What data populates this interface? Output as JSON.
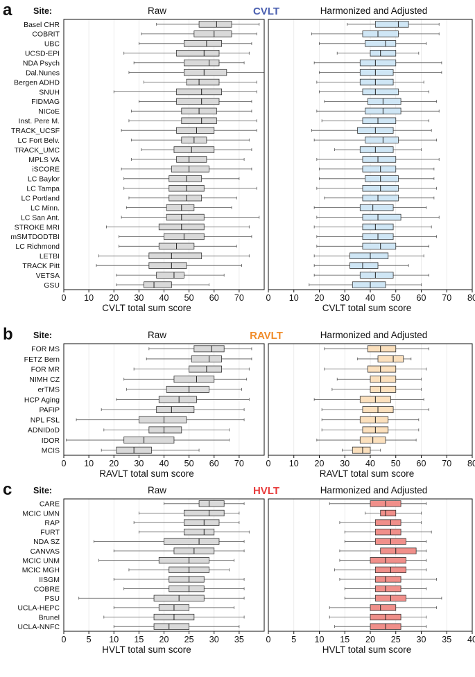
{
  "colors": {
    "cvlt": "#4a5fb0",
    "ravlt": "#f08c2a",
    "hvlt": "#e83c3c"
  },
  "chart_data": [
    {
      "panel": "a",
      "type": "boxplot",
      "test_name": "CVLT",
      "site_header": "Site:",
      "left_title": "Raw",
      "right_title": "Harmonized and Adjusted",
      "xlabel": "CVLT total sum score",
      "xlim": [
        0,
        80
      ],
      "xticks": [
        0,
        10,
        20,
        30,
        40,
        50,
        60,
        70,
        80
      ],
      "left_xticks": [
        0,
        10,
        20,
        30,
        40,
        50,
        60,
        70
      ],
      "raw_fill": "#d9d9d9",
      "adj_fill": "#cfe6f5",
      "sites": [
        "Basel CHR",
        "COBRIT",
        "UBC",
        "UCSD-EPI",
        "NDA Psych",
        "Dal.Nunes",
        "Bergen ADHD",
        "SNUH",
        "FIDMAG",
        "NICoE",
        "Inst. Pere M.",
        "TRACK_UCSF",
        "LC Fort Belv.",
        "TRACK_UMC",
        "MPLS VA",
        "iSCORE",
        "LC Baylor",
        "LC Tampa",
        "LC Portland",
        "LC Minn.",
        "LC San Ant.",
        "STROKE MRI",
        "mSMTDODTBI",
        "LC Richmond",
        "LETBI",
        "TRACK Pitt",
        "VETSA",
        "GSU"
      ],
      "raw": [
        [
          37,
          54,
          61,
          67,
          78
        ],
        [
          31,
          52,
          60,
          67,
          77
        ],
        [
          30,
          48,
          57,
          63,
          75
        ],
        [
          24,
          45,
          56,
          62,
          74
        ],
        [
          28,
          48,
          58,
          62,
          72
        ],
        [
          26,
          48,
          56,
          65,
          80
        ],
        [
          32,
          49,
          54,
          62,
          77
        ],
        [
          20,
          45,
          55,
          63,
          77
        ],
        [
          30,
          45,
          55,
          62,
          75
        ],
        [
          27,
          47,
          54,
          61,
          75
        ],
        [
          26,
          47,
          55,
          61,
          77
        ],
        [
          23,
          45,
          53,
          60,
          77
        ],
        [
          27,
          47,
          52,
          57,
          74
        ],
        [
          31,
          44,
          51,
          60,
          75
        ],
        [
          27,
          45,
          50,
          57,
          72
        ],
        [
          23,
          43,
          50,
          58,
          75
        ],
        [
          24,
          42,
          49,
          55,
          70
        ],
        [
          24,
          42,
          49,
          56,
          77
        ],
        [
          26,
          42,
          49,
          55,
          69
        ],
        [
          25,
          41,
          47,
          52,
          67
        ],
        [
          23,
          41,
          47,
          56,
          78
        ],
        [
          17,
          38,
          47,
          56,
          74
        ],
        [
          22,
          40,
          48,
          56,
          75
        ],
        [
          22,
          38,
          45,
          52,
          69
        ],
        [
          14,
          34,
          43,
          55,
          74
        ],
        [
          13,
          34,
          43,
          49,
          71
        ],
        [
          21,
          37,
          44,
          48,
          64
        ],
        [
          21,
          32,
          36,
          43,
          58
        ]
      ],
      "adjusted": [
        [
          31,
          42,
          51,
          55,
          67
        ],
        [
          17,
          37,
          43,
          51,
          67
        ],
        [
          20,
          38,
          46,
          50,
          62
        ],
        [
          27,
          40,
          44,
          50,
          59
        ],
        [
          18,
          36,
          42,
          50,
          68
        ],
        [
          20,
          36,
          42,
          49,
          68
        ],
        [
          19,
          36,
          42,
          49,
          61
        ],
        [
          20,
          37,
          42,
          51,
          63
        ],
        [
          22,
          39,
          45,
          52,
          66
        ],
        [
          19,
          38,
          45,
          52,
          67
        ],
        [
          21,
          37,
          43,
          50,
          63
        ],
        [
          17,
          35,
          42,
          49,
          64
        ],
        [
          18,
          38,
          45,
          51,
          66
        ],
        [
          26,
          36,
          42,
          49,
          60
        ],
        [
          19,
          37,
          43,
          50,
          67
        ],
        [
          20,
          37,
          44,
          50,
          65
        ],
        [
          20,
          38,
          44,
          51,
          65
        ],
        [
          19,
          37,
          44,
          51,
          66
        ],
        [
          22,
          37,
          43,
          51,
          65
        ],
        [
          18,
          36,
          41,
          49,
          62
        ],
        [
          19,
          37,
          43,
          52,
          67
        ],
        [
          18,
          37,
          42,
          49,
          64
        ],
        [
          19,
          37,
          43,
          49,
          66
        ],
        [
          19,
          37,
          44,
          50,
          63
        ],
        [
          18,
          32,
          40,
          47,
          61
        ],
        [
          18,
          32,
          37,
          43,
          55
        ],
        [
          18,
          36,
          42,
          49,
          63
        ],
        [
          16,
          33,
          40,
          46,
          60
        ]
      ]
    },
    {
      "panel": "b",
      "type": "boxplot",
      "test_name": "RAVLT",
      "site_header": "Site:",
      "left_title": "Raw",
      "right_title": "Harmonized and Adjusted",
      "xlabel": "RAVLT total sum score",
      "xlim": [
        0,
        80
      ],
      "xticks": [
        0,
        10,
        20,
        30,
        40,
        50,
        60,
        70,
        80
      ],
      "left_xticks": [
        0,
        10,
        20,
        30,
        40,
        50,
        60,
        70
      ],
      "raw_fill": "#d9d9d9",
      "adj_fill": "#fbe0bd",
      "sites": [
        "FOR MS",
        "FETZ Bern",
        "FOR MR",
        "NIMH CZ",
        "erTMS",
        "HCP Aging",
        "PAFIP",
        "NPL FSL",
        "ADNIDoD",
        "IDOR",
        "MCIS"
      ],
      "raw": [
        [
          34,
          52,
          59,
          64,
          75
        ],
        [
          33,
          51,
          58,
          63,
          75
        ],
        [
          28,
          50,
          57,
          63,
          74
        ],
        [
          24,
          44,
          53,
          60,
          73
        ],
        [
          25,
          41,
          50,
          58,
          71
        ],
        [
          21,
          38,
          46,
          53,
          74
        ],
        [
          15,
          37,
          43,
          52,
          72
        ],
        [
          5,
          30,
          40,
          49,
          72
        ],
        [
          16,
          34,
          40,
          47,
          66
        ],
        [
          1,
          24,
          32,
          44,
          66
        ],
        [
          15,
          21,
          28,
          35,
          54
        ]
      ],
      "adjusted": [
        [
          22,
          39,
          44,
          50,
          63
        ],
        [
          35,
          43,
          49,
          53,
          56
        ],
        [
          22,
          39,
          44,
          50,
          62
        ],
        [
          27,
          40,
          44,
          50,
          60
        ],
        [
          25,
          40,
          44,
          50,
          60
        ],
        [
          18,
          36,
          42,
          48,
          61
        ],
        [
          21,
          37,
          43,
          49,
          63
        ],
        [
          21,
          36,
          42,
          47,
          59
        ],
        [
          21,
          37,
          42,
          47,
          59
        ],
        [
          19,
          36,
          41,
          46,
          58
        ],
        [
          29,
          33,
          37,
          40,
          44
        ]
      ]
    },
    {
      "panel": "c",
      "type": "boxplot",
      "test_name": "HVLT",
      "site_header": "Site:",
      "left_title": "Raw",
      "right_title": "Harmonized and Adjusted",
      "xlabel": "HVLT total sum score",
      "xlim": [
        0,
        40
      ],
      "xticks": [
        0,
        5,
        10,
        15,
        20,
        25,
        30,
        35,
        40
      ],
      "left_xticks": [
        0,
        5,
        10,
        15,
        20,
        25,
        30,
        35
      ],
      "raw_fill": "#d9d9d9",
      "adj_fill": "#f08f8a",
      "sites": [
        "CARE",
        "MCIC UMN",
        "RAP",
        "FURT",
        "NDA SZ",
        "CANVAS",
        "MCIC UNM",
        "MCIC MGH",
        "IISGM",
        "COBRE",
        "PSU",
        "UCLA-HEPC",
        "Brunel",
        "UCLA-NNFC"
      ],
      "raw": [
        [
          20,
          27,
          29,
          32,
          36
        ],
        [
          15,
          24,
          29,
          32,
          35
        ],
        [
          14,
          24,
          28,
          31,
          35
        ],
        [
          15,
          24,
          28,
          30,
          37
        ],
        [
          6,
          20,
          27,
          31,
          36
        ],
        [
          10,
          22,
          26,
          30,
          36
        ],
        [
          7,
          19,
          25,
          29,
          34
        ],
        [
          13,
          21,
          25,
          29,
          33
        ],
        [
          10,
          21,
          25,
          28,
          36
        ],
        [
          12,
          21,
          25,
          28,
          36
        ],
        [
          3,
          18,
          23,
          28,
          36
        ],
        [
          10,
          19,
          22,
          25,
          34
        ],
        [
          8,
          18,
          22,
          26,
          36
        ],
        [
          10,
          18,
          21,
          25,
          35
        ]
      ],
      "adjusted": [
        [
          12,
          20,
          23,
          26,
          31
        ],
        [
          19,
          22,
          23,
          25,
          30
        ],
        [
          14,
          21,
          24,
          26,
          30
        ],
        [
          15,
          21,
          24,
          26,
          32
        ],
        [
          15,
          21,
          24,
          27,
          31
        ],
        [
          14,
          22,
          25,
          29,
          31
        ],
        [
          14,
          20,
          23,
          27,
          31
        ],
        [
          13,
          21,
          24,
          27,
          31
        ],
        [
          14,
          21,
          23,
          26,
          33
        ],
        [
          15,
          21,
          23,
          26,
          31
        ],
        [
          15,
          21,
          24,
          27,
          34
        ],
        [
          12,
          20,
          22,
          25,
          33
        ],
        [
          12,
          20,
          23,
          26,
          31
        ],
        [
          13,
          20,
          23,
          26,
          31
        ]
      ]
    }
  ]
}
